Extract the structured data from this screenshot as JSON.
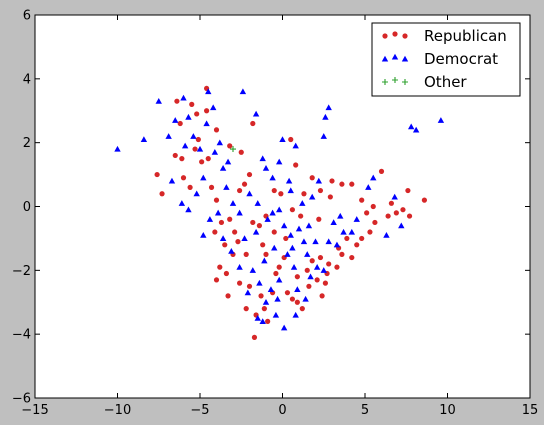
{
  "chart_data": {
    "type": "scatter",
    "title": "",
    "xlabel": "",
    "ylabel": "",
    "xlim": [
      -15,
      15
    ],
    "ylim": [
      -6,
      6
    ],
    "x_ticks": [
      -15,
      -10,
      -5,
      0,
      5,
      10,
      15
    ],
    "y_ticks": [
      -6,
      -4,
      -2,
      0,
      2,
      4,
      6
    ],
    "x_tick_labels": [
      "−15",
      "−10",
      "−5",
      "0",
      "5",
      "10",
      "15"
    ],
    "y_tick_labels": [
      "−6",
      "−4",
      "−2",
      "0",
      "2",
      "4",
      "6"
    ],
    "grid": false,
    "legend_position": "top-right",
    "series": [
      {
        "name": "Republican",
        "marker": "circle",
        "color": "#d62728",
        "points": [
          [
            -4.6,
            3.7
          ],
          [
            -5.5,
            3.2
          ],
          [
            -4.6,
            3.0
          ],
          [
            -5.2,
            2.9
          ],
          [
            -4.0,
            2.4
          ],
          [
            -6.4,
            3.3
          ],
          [
            -6.2,
            2.6
          ],
          [
            -6.5,
            1.6
          ],
          [
            -6.1,
            1.5
          ],
          [
            -5.3,
            1.8
          ],
          [
            -4.9,
            1.4
          ],
          [
            -4.5,
            1.5
          ],
          [
            -5.1,
            2.1
          ],
          [
            -3.2,
            1.9
          ],
          [
            -2.5,
            1.7
          ],
          [
            -2.0,
            1.0
          ],
          [
            -1.8,
            2.6
          ],
          [
            0.5,
            2.1
          ],
          [
            0.8,
            1.3
          ],
          [
            -7.6,
            1.0
          ],
          [
            -7.3,
            0.4
          ],
          [
            -6.0,
            0.9
          ],
          [
            -5.6,
            0.6
          ],
          [
            -4.0,
            0.2
          ],
          [
            -4.3,
            0.6
          ],
          [
            -2.6,
            0.5
          ],
          [
            -2.3,
            0.7
          ],
          [
            -3.7,
            -0.5
          ],
          [
            -4.1,
            -0.8
          ],
          [
            -3.5,
            -1.2
          ],
          [
            -3.8,
            -1.9
          ],
          [
            -4.0,
            -2.3
          ],
          [
            -3.4,
            -2.1
          ],
          [
            -2.7,
            -1.1
          ],
          [
            -2.2,
            -1.5
          ],
          [
            -2.6,
            -2.4
          ],
          [
            -2.0,
            -2.5
          ],
          [
            -1.2,
            -1.2
          ],
          [
            -1.0,
            -1.5
          ],
          [
            -0.5,
            -0.8
          ],
          [
            0.2,
            -1.0
          ],
          [
            0.1,
            -1.6
          ],
          [
            -0.4,
            -2.1
          ],
          [
            0.3,
            -2.7
          ],
          [
            -0.6,
            -2.7
          ],
          [
            -1.3,
            -2.8
          ],
          [
            -1.1,
            -3.2
          ],
          [
            -2.2,
            -3.2
          ],
          [
            -1.6,
            -3.4
          ],
          [
            -0.9,
            -3.6
          ],
          [
            -1.7,
            -4.1
          ],
          [
            0.6,
            -2.9
          ],
          [
            0.9,
            -3.0
          ],
          [
            1.2,
            -3.2
          ],
          [
            1.6,
            -2.5
          ],
          [
            2.1,
            -2.3
          ],
          [
            2.4,
            -2.8
          ],
          [
            2.6,
            -2.4
          ],
          [
            1.8,
            -1.7
          ],
          [
            2.3,
            -1.6
          ],
          [
            2.8,
            -1.8
          ],
          [
            3.3,
            -1.9
          ],
          [
            3.6,
            -1.5
          ],
          [
            4.2,
            -1.6
          ],
          [
            4.5,
            -1.2
          ],
          [
            4.8,
            -1.0
          ],
          [
            5.3,
            -0.8
          ],
          [
            5.6,
            -0.5
          ],
          [
            6.4,
            -0.3
          ],
          [
            6.9,
            -0.2
          ],
          [
            7.3,
            -0.1
          ],
          [
            2.9,
            0.3
          ],
          [
            2.3,
            0.5
          ],
          [
            3.0,
            0.8
          ],
          [
            3.6,
            0.7
          ],
          [
            4.2,
            0.7
          ],
          [
            4.8,
            0.2
          ],
          [
            5.1,
            -0.2
          ],
          [
            5.5,
            0.0
          ],
          [
            6.0,
            1.1
          ],
          [
            6.6,
            0.1
          ],
          [
            7.6,
            0.5
          ],
          [
            8.6,
            0.2
          ],
          [
            7.7,
            -0.3
          ],
          [
            1.8,
            0.9
          ],
          [
            1.3,
            0.4
          ],
          [
            1.1,
            -0.3
          ],
          [
            2.2,
            -0.4
          ],
          [
            0.6,
            -0.1
          ],
          [
            -0.1,
            0.4
          ],
          [
            -1.0,
            -0.3
          ],
          [
            -1.8,
            -0.5
          ],
          [
            -0.5,
            0.5
          ],
          [
            -3.2,
            -0.4
          ],
          [
            -2.9,
            -0.8
          ],
          [
            -3.0,
            -1.5
          ],
          [
            -3.3,
            -2.8
          ],
          [
            -1.4,
            -0.6
          ],
          [
            -0.2,
            -1.9
          ],
          [
            0.9,
            -2.2
          ],
          [
            1.5,
            -2.0
          ],
          [
            2.7,
            -2.1
          ],
          [
            3.4,
            -1.3
          ],
          [
            3.9,
            -1.0
          ]
        ]
      },
      {
        "name": "Democrat",
        "marker": "triangle",
        "color": "#0000ff",
        "points": [
          [
            -10.0,
            1.8
          ],
          [
            -8.4,
            2.1
          ],
          [
            -7.5,
            3.3
          ],
          [
            -6.9,
            2.2
          ],
          [
            -6.5,
            2.7
          ],
          [
            -6.0,
            3.4
          ],
          [
            -5.7,
            2.8
          ],
          [
            -5.4,
            2.2
          ],
          [
            -5.0,
            1.8
          ],
          [
            -4.5,
            3.6
          ],
          [
            -4.2,
            3.1
          ],
          [
            -3.8,
            2.0
          ],
          [
            -3.6,
            1.2
          ],
          [
            -2.4,
            3.6
          ],
          [
            -1.6,
            2.9
          ],
          [
            -1.2,
            1.5
          ],
          [
            -0.6,
            0.9
          ],
          [
            0.0,
            2.1
          ],
          [
            -0.2,
            1.4
          ],
          [
            0.8,
            1.9
          ],
          [
            2.5,
            2.2
          ],
          [
            2.6,
            2.8
          ],
          [
            2.8,
            3.1
          ],
          [
            -6.7,
            0.8
          ],
          [
            -6.1,
            0.1
          ],
          [
            -5.7,
            -0.1
          ],
          [
            -5.2,
            0.4
          ],
          [
            -4.8,
            0.9
          ],
          [
            -4.4,
            -0.4
          ],
          [
            -4.8,
            -0.9
          ],
          [
            -3.6,
            -1.0
          ],
          [
            -3.1,
            -1.4
          ],
          [
            -2.3,
            -1.0
          ],
          [
            -1.6,
            -0.8
          ],
          [
            -0.6,
            -0.2
          ],
          [
            0.1,
            -0.6
          ],
          [
            0.5,
            -0.9
          ],
          [
            0.3,
            -1.5
          ],
          [
            0.7,
            -1.9
          ],
          [
            -0.2,
            -2.3
          ],
          [
            -0.7,
            -2.6
          ],
          [
            -1.0,
            -3.0
          ],
          [
            -1.5,
            -3.5
          ],
          [
            -1.2,
            -3.6
          ],
          [
            -0.4,
            -3.4
          ],
          [
            0.1,
            -3.8
          ],
          [
            0.8,
            -3.4
          ],
          [
            1.4,
            -2.9
          ],
          [
            1.7,
            -2.2
          ],
          [
            2.1,
            -1.9
          ],
          [
            2.5,
            -2.0
          ],
          [
            3.3,
            -1.2
          ],
          [
            3.7,
            -0.8
          ],
          [
            3.1,
            -0.5
          ],
          [
            2.2,
            0.8
          ],
          [
            1.8,
            0.3
          ],
          [
            1.2,
            0.1
          ],
          [
            0.5,
            0.5
          ],
          [
            -0.2,
            -0.1
          ],
          [
            -0.9,
            -0.4
          ],
          [
            -1.5,
            0.1
          ],
          [
            -2.0,
            0.4
          ],
          [
            -2.6,
            -0.2
          ],
          [
            -3.0,
            0.1
          ],
          [
            -3.4,
            0.6
          ],
          [
            -3.9,
            -0.2
          ],
          [
            -2.6,
            -1.9
          ],
          [
            -1.8,
            -2.0
          ],
          [
            -1.1,
            -1.7
          ],
          [
            -0.5,
            -1.3
          ],
          [
            0.6,
            -1.3
          ],
          [
            1.0,
            -0.7
          ],
          [
            1.6,
            -0.6
          ],
          [
            2.0,
            -1.1
          ],
          [
            2.8,
            -1.1
          ],
          [
            3.5,
            -0.3
          ],
          [
            4.2,
            -0.8
          ],
          [
            4.5,
            -0.4
          ],
          [
            5.2,
            0.6
          ],
          [
            5.5,
            0.9
          ],
          [
            6.3,
            -0.9
          ],
          [
            6.8,
            0.3
          ],
          [
            7.2,
            -0.6
          ],
          [
            7.8,
            2.5
          ],
          [
            8.1,
            2.4
          ],
          [
            9.6,
            2.7
          ],
          [
            -4.6,
            2.6
          ],
          [
            -5.9,
            1.9
          ],
          [
            -4.1,
            1.7
          ],
          [
            -3.3,
            1.4
          ],
          [
            -1.0,
            1.2
          ],
          [
            0.4,
            0.8
          ],
          [
            1.3,
            -1.1
          ],
          [
            -2.1,
            -2.7
          ],
          [
            -1.4,
            -2.4
          ],
          [
            -0.3,
            -2.9
          ],
          [
            0.9,
            -2.6
          ],
          [
            1.5,
            -1.5
          ]
        ]
      },
      {
        "name": "Other",
        "marker": "plus",
        "color": "#2ca02c",
        "points": [
          [
            -3.0,
            1.8
          ]
        ]
      }
    ]
  }
}
